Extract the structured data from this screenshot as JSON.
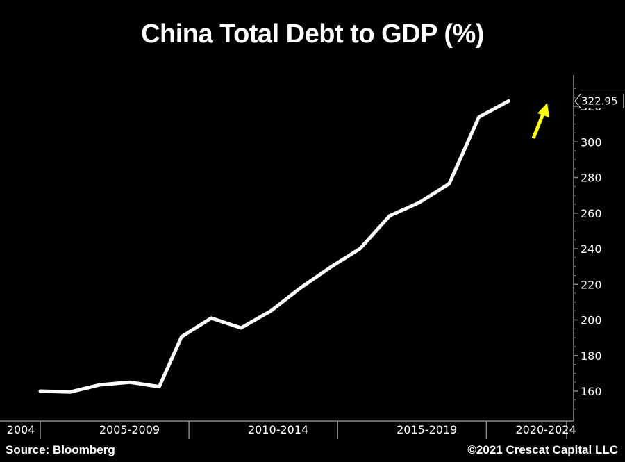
{
  "title": "China Total Debt to GDP (%)",
  "source": "Source: Bloomberg",
  "copyright": "©2021 Crescat Capital LLC",
  "colors": {
    "background": "#000000",
    "line": "#ffffff",
    "axis": "#8a8a8a",
    "arrow": "#ffff00",
    "text": "#ffffff"
  },
  "chart_data": {
    "type": "line",
    "title": "China Total Debt to GDP (%)",
    "xlabel": "",
    "ylabel": "",
    "ylim": [
      145,
      330
    ],
    "xlim": [
      2005.0,
      2022.7
    ],
    "y_ticks": [
      160,
      180,
      200,
      220,
      240,
      260,
      280,
      300,
      320
    ],
    "x_period_labels": [
      {
        "label": "2004",
        "center": 2004.35
      },
      {
        "label": "2005-2009",
        "center": 2008.0
      },
      {
        "label": "2010-2014",
        "center": 2013.0
      },
      {
        "label": "2015-2019",
        "center": 2018.0
      },
      {
        "label": "2020-2024",
        "center": 2022.0
      }
    ],
    "x_boundaries": [
      2005.0,
      2010.0,
      2015.0,
      2020.0,
      2022.7
    ],
    "last_value_label": "322.95",
    "grid": false,
    "series": [
      {
        "x": [
          2005.0,
          2006.0,
          2007.0,
          2008.0,
          2009.0,
          2009.75,
          2010.75,
          2011.75,
          2012.75,
          2013.75,
          2014.75,
          2015.75,
          2016.75,
          2017.75,
          2018.75,
          2019.75,
          2020.75
        ],
        "values": [
          160,
          159.5,
          163.5,
          165,
          162.5,
          190.5,
          201,
          195.5,
          205,
          218,
          229.5,
          240,
          258.5,
          266,
          276.5,
          314,
          322.95
        ]
      }
    ]
  }
}
